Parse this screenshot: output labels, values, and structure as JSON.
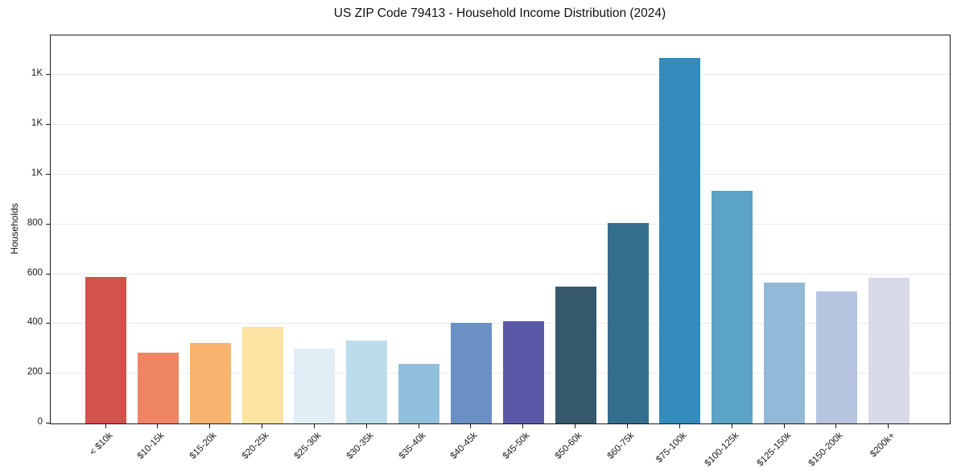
{
  "chart_data": {
    "type": "bar",
    "title": "US ZIP Code 79413 - Household Income Distribution (2024)",
    "xlabel": "",
    "ylabel": "Households",
    "categories": [
      "< $10k",
      "$10-15k",
      "$15-20k",
      "$20-25k",
      "$25-30k",
      "$30-35k",
      "$35-40k",
      "$40-45k",
      "$45-50k",
      "$50-60k",
      "$60-75k",
      "$75-100k",
      "$100-125k",
      "$125-150k",
      "$150-200k",
      "$200k+"
    ],
    "values": [
      590,
      285,
      325,
      390,
      300,
      335,
      240,
      405,
      410,
      550,
      805,
      1470,
      935,
      565,
      530,
      585
    ],
    "bar_colors": [
      "#d2524c",
      "#f08564",
      "#f8b36f",
      "#fce3a2",
      "#e1eef5",
      "#bcdcec",
      "#90c0dc",
      "#6a90c5",
      "#5b59a7",
      "#35586d",
      "#346f90",
      "#348cbc",
      "#5ba4c7",
      "#93b9d8",
      "#b6c4df",
      "#d9dae8"
    ],
    "y_ticks": [
      {
        "value": 0,
        "label": "0"
      },
      {
        "value": 200,
        "label": "200"
      },
      {
        "value": 400,
        "label": "400"
      },
      {
        "value": 600,
        "label": "600"
      },
      {
        "value": 800,
        "label": "800"
      },
      {
        "value": 1000,
        "label": "1K"
      },
      {
        "value": 1200,
        "label": "1K"
      },
      {
        "value": 1400,
        "label": "1K"
      }
    ],
    "ylim": [
      0,
      1560
    ],
    "grid": "horizontal",
    "legend": "none",
    "background_color": "#ffffff",
    "spine_color": "#1a1a1a",
    "grid_color": "#e9e9e9"
  }
}
